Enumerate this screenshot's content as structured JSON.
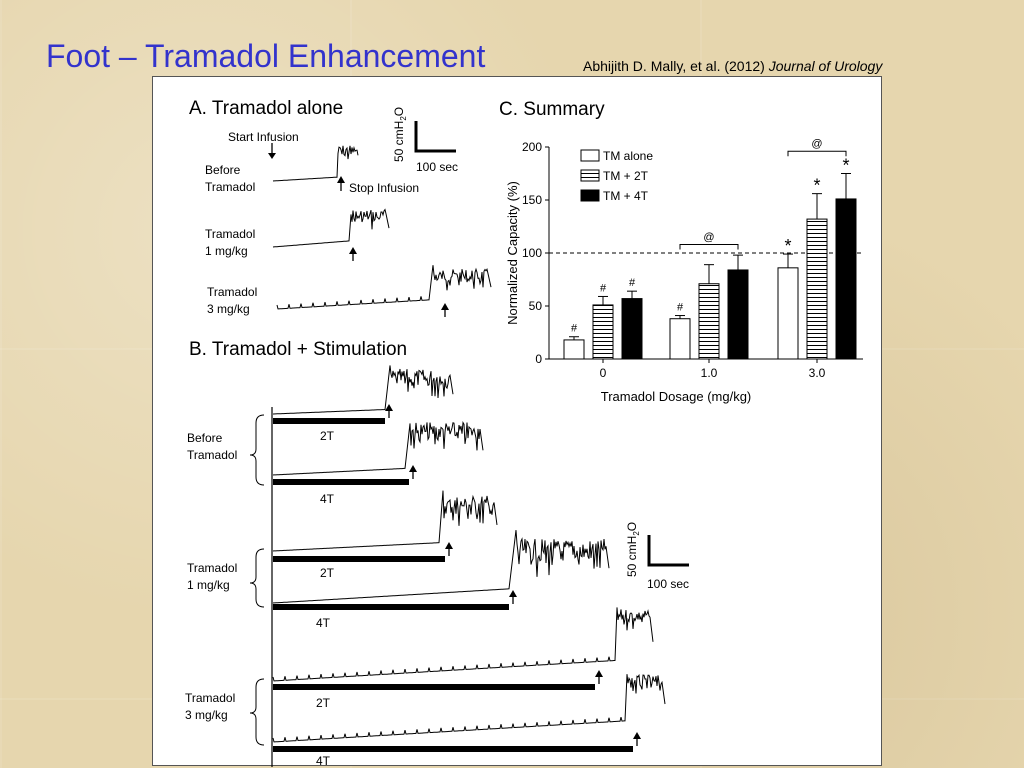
{
  "slide": {
    "title": "Foot – Tramadol Enhancement",
    "citation_authors": "Abhijith D. Mally, et al. (2012) ",
    "citation_journal": "Journal of Urology"
  },
  "panel_a": {
    "title": "A. Tramadol alone",
    "start_infusion": "Start Infusion",
    "stop_infusion": "Stop Infusion",
    "rows": [
      {
        "line1": "Before",
        "line2": "Tramadol"
      },
      {
        "line1": "Tramadol",
        "line2": "1 mg/kg"
      },
      {
        "line1": "Tramadol",
        "line2": "3 mg/kg"
      }
    ],
    "scale_y": "50 cmH",
    "scale_y_sub": "2",
    "scale_y_end": "O",
    "scale_x": "100 sec"
  },
  "panel_b": {
    "title": "B. Tramadol + Stimulation",
    "groups": [
      {
        "line1": "Before",
        "line2": "Tramadol"
      },
      {
        "line1": "Tramadol",
        "line2": "1 mg/kg"
      },
      {
        "line1": "Tramadol",
        "line2": "3 mg/kg"
      }
    ],
    "stim_labels": [
      "2T",
      "4T",
      "2T",
      "4T",
      "2T",
      "4T"
    ],
    "scale_y": "50 cmH",
    "scale_y_sub": "2",
    "scale_y_end": "O",
    "scale_x": "100 sec"
  },
  "panel_c": {
    "title": "C. Summary",
    "chart_data": {
      "type": "bar",
      "xlabel": "Tramadol Dosage (mg/kg)",
      "ylabel": "Normalized Capacity (%)",
      "categories": [
        "0",
        "1.0",
        "3.0"
      ],
      "ylim": [
        0,
        200
      ],
      "yticks": [
        "0",
        "50",
        "100",
        "150",
        "200"
      ],
      "reference_line": 100,
      "legend_position": "top-left",
      "series": [
        {
          "name": "TM alone",
          "values": [
            18,
            38,
            86
          ],
          "errors": [
            3,
            3,
            13
          ],
          "color": "#ffffff",
          "pattern": "none"
        },
        {
          "name": "TM + 2T",
          "values": [
            51,
            71,
            132
          ],
          "errors": [
            8,
            18,
            24
          ],
          "color": "#ffffff",
          "pattern": "horizontal-lines"
        },
        {
          "name": "TM + 4T",
          "values": [
            57,
            84,
            151
          ],
          "errors": [
            7,
            14,
            24
          ],
          "color": "#000000",
          "pattern": "none"
        }
      ],
      "annotations": [
        {
          "text": "#",
          "category": "0",
          "series": "TM alone"
        },
        {
          "text": "#",
          "category": "0",
          "series": "TM + 2T"
        },
        {
          "text": "#",
          "category": "0",
          "series": "TM + 4T"
        },
        {
          "text": "#",
          "category": "1.0",
          "series": "TM alone"
        },
        {
          "text": "*",
          "category": "3.0",
          "series": "TM alone"
        },
        {
          "text": "*",
          "category": "3.0",
          "series": "TM + 2T"
        },
        {
          "text": "*",
          "category": "3.0",
          "series": "TM + 4T"
        },
        {
          "text": "@",
          "category": "1.0",
          "span": "TM alone to TM + 4T"
        },
        {
          "text": "@",
          "category": "3.0",
          "span": "TM alone to TM + 4T"
        }
      ]
    }
  }
}
